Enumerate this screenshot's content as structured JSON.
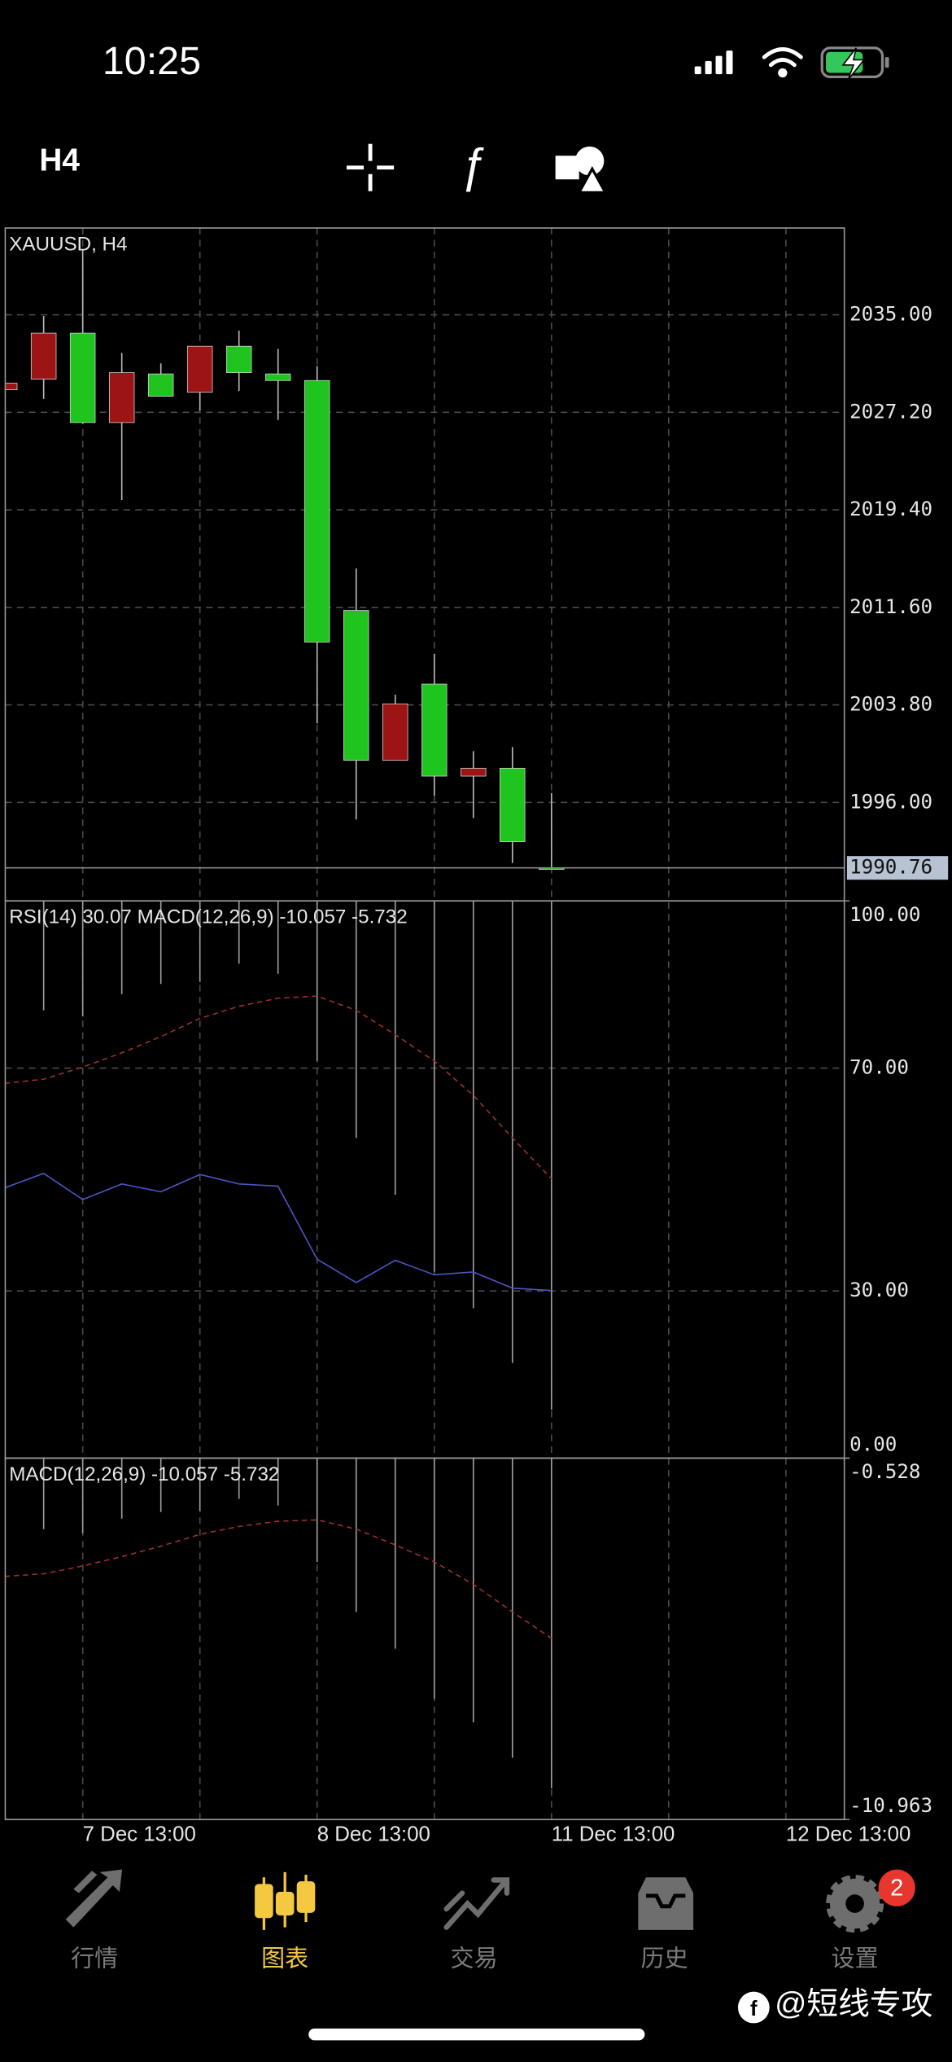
{
  "status_bar": {
    "time": "10:25"
  },
  "toolbar": {
    "timeframe": "H4"
  },
  "chart_data": [
    {
      "type": "candlestick",
      "title": "XAUUSD, H4",
      "open": [
        2029.53,
        2033.53,
        2026.38,
        2030.37,
        2028.48,
        2032.48,
        2030.37,
        2029.74,
        2008.82,
        1999.36,
        2003.88,
        1998.1,
        1998.73,
        1992.85,
        1990.64
      ],
      "high": [
        2029.6,
        2034.9,
        2040.15,
        2031.95,
        2031.11,
        2032.48,
        2033.74,
        2032.27,
        2030.9,
        2014.71,
        2004.62,
        2007.88,
        2000.1,
        2000.42,
        1996.74
      ],
      "low": [
        2028.9,
        2028.27,
        2026.27,
        2020.18,
        2028.48,
        2027.33,
        2028.9,
        2026.59,
        2002.31,
        1994.63,
        1999.36,
        1996.53,
        1994.74,
        1991.16,
        1990.64
      ],
      "close": [
        2029.0,
        2029.85,
        2033.53,
        2026.38,
        2030.27,
        2028.8,
        2032.48,
        2030.27,
        2029.74,
        2011.35,
        1999.36,
        2005.46,
        1998.1,
        1998.73,
        1990.76
      ],
      "up_color": "#1fc41f",
      "down_color": "#9c1414",
      "ylim": [
        1988.12,
        2041.94
      ],
      "yticks": [
        {
          "value": 2035,
          "label": "2035.00"
        },
        {
          "value": 2027.2,
          "label": "2027.20"
        },
        {
          "value": 2019.4,
          "label": "2019.40"
        },
        {
          "value": 2011.6,
          "label": "2011.60"
        },
        {
          "value": 2003.8,
          "label": "2003.80"
        },
        {
          "value": 1996,
          "label": "1996.00"
        }
      ],
      "last_price": {
        "value": 1990.76,
        "label": "1990.76"
      },
      "grid": true,
      "x_labels": [
        "7 Dec 13:00",
        "8 Dec 13:00",
        "11 Dec 13:00",
        "12 Dec 13:00"
      ]
    },
    {
      "type": "line",
      "title": "RSI(14) 30.07 MACD(12,26,9) -10.057 -5.732",
      "series": [
        {
          "color": "#4b55c0",
          "values": [
            48.5,
            51.1,
            46.4,
            49.2,
            47.8,
            50.9,
            49.2,
            48.8,
            35.7,
            31.5,
            35.5,
            32.9,
            33.4,
            30.5,
            30.07
          ]
        }
      ],
      "ylim": [
        0,
        100
      ],
      "yticks": [
        {
          "value": 100,
          "label": "100.00"
        },
        {
          "value": 70,
          "label": "70.00"
        },
        {
          "value": 30,
          "label": "30.00"
        },
        {
          "value": 0,
          "label": "0.00"
        }
      ],
      "show_macd": true
    },
    {
      "type": "macd",
      "title": "MACD(12,26,9) -10.057 -5.732",
      "histogram": {
        "color": "#a0a0a0",
        "values": [
          null,
          -2.578,
          -2.691,
          -2.274,
          -2.084,
          -2.046,
          -1.704,
          -1.894,
          -3.526,
          -4.968,
          -6.031,
          -7.473,
          -8.156,
          -9.181,
          -10.057
        ]
      },
      "signal": {
        "color": "#9b2f2f",
        "values": [
          -3.944,
          -3.868,
          -3.64,
          -3.374,
          -3.07,
          -2.729,
          -2.501,
          -2.35,
          -2.312,
          -2.577,
          -3.033,
          -3.526,
          -4.171,
          -4.968,
          -5.732
        ]
      },
      "ylim": [
        -10.963,
        -0.528
      ],
      "yticks": [
        -0.528,
        -10.963
      ]
    }
  ],
  "tab_bar": {
    "tabs": [
      {
        "label": "行情"
      },
      {
        "label": "图表"
      },
      {
        "label": "交易"
      },
      {
        "label": "历史"
      },
      {
        "label": "设置"
      }
    ],
    "active": 1,
    "badge": "2"
  },
  "watermark": "@短线专攻"
}
